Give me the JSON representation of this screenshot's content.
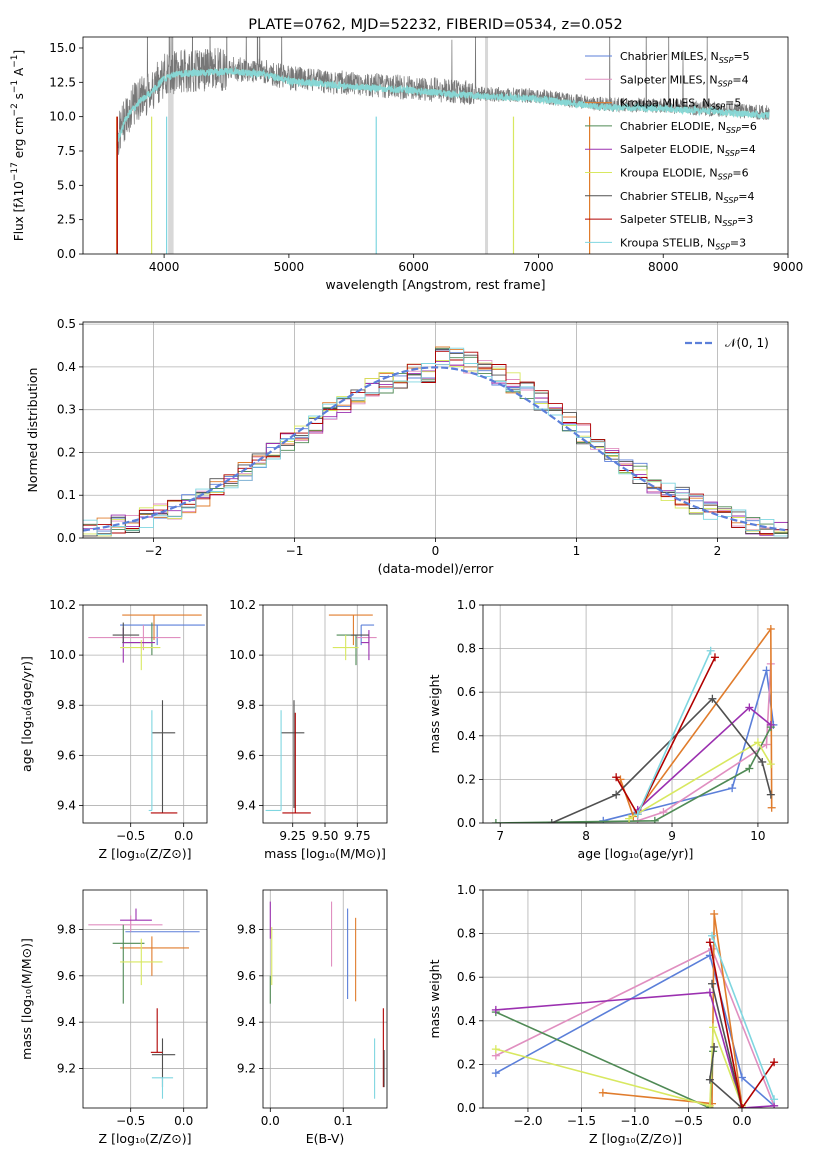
{
  "title": "PLATE=0762, MJD=52232, FIBERID=0534, z=0.052",
  "colors": {
    "Chabrier MILES": "#5b7fd9",
    "Salpeter MILES": "#e08fc0",
    "Kroupa MILES": "#e07c2c",
    "Chabrier ELODIE": "#4f8a55",
    "Salpeter ELODIE": "#9b30b0",
    "Kroupa ELODIE": "#d8e860",
    "Chabrier STELIB": "#505050",
    "Salpeter STELIB": "#b00000",
    "Kroupa STELIB": "#7fd6e0"
  },
  "chart_data": [
    {
      "id": "spectrum",
      "type": "line",
      "title": "PLATE=0762, MJD=52232, FIBERID=0534, z=0.052",
      "xlabel": "wavelength [Angstrom, rest frame]",
      "ylabel_html": "Flux [f<tspan font-style='italic'>λ</tspan>10<tspan dy='-6' font-size='9'>−17</tspan><tspan dy='6'> erg cm</tspan><tspan dy='-6' font-size='9'>−2</tspan><tspan dy='6'> s</tspan><tspan dy='-6' font-size='9'>−1</tspan><tspan dy='6'> A</tspan><tspan dy='-6' font-size='9'>−1</tspan><tspan dy='6'>]</tspan>",
      "xlim": [
        3350,
        9000
      ],
      "ylim": [
        0,
        15.8
      ],
      "xticks": [
        4000,
        5000,
        6000,
        7000,
        8000,
        9000
      ],
      "yticks": [
        0.0,
        2.5,
        5.0,
        7.5,
        10.0,
        12.5,
        15.0
      ],
      "legend": [
        {
          "name": "Chabrier MILES",
          "label": "Chabrier MILES, N",
          "nssp": "5"
        },
        {
          "name": "Salpeter MILES",
          "label": "Salpeter MILES, N",
          "nssp": "4"
        },
        {
          "name": "Kroupa MILES",
          "label": "Kroupa MILES, N",
          "nssp": "5"
        },
        {
          "name": "Chabrier ELODIE",
          "label": "Chabrier ELODIE, N",
          "nssp": "6"
        },
        {
          "name": "Salpeter ELODIE",
          "label": "Salpeter ELODIE, N",
          "nssp": "4"
        },
        {
          "name": "Kroupa ELODIE",
          "label": "Kroupa ELODIE, N",
          "nssp": "6"
        },
        {
          "name": "Chabrier STELIB",
          "label": "Chabrier STELIB, N",
          "nssp": "4"
        },
        {
          "name": "Salpeter STELIB",
          "label": "Salpeter STELIB, N",
          "nssp": "3"
        },
        {
          "name": "Kroupa STELIB",
          "label": "Kroupa STELIB, N",
          "nssp": "3"
        }
      ],
      "legend_sub": "SSP",
      "legend_placement": "upper-right",
      "continuum": [
        [
          3620,
          8.3
        ],
        [
          3700,
          10.2
        ],
        [
          3800,
          11.3
        ],
        [
          3900,
          12.0
        ],
        [
          4000,
          13.0
        ],
        [
          4100,
          13.3
        ],
        [
          4300,
          13.4
        ],
        [
          4500,
          13.5
        ],
        [
          4800,
          13.3
        ],
        [
          5000,
          12.8
        ],
        [
          5500,
          12.4
        ],
        [
          6000,
          12.1
        ],
        [
          6500,
          11.7
        ],
        [
          7000,
          11.5
        ],
        [
          7500,
          10.9
        ],
        [
          8000,
          10.8
        ],
        [
          8500,
          10.5
        ],
        [
          8800,
          10.3
        ]
      ],
      "data_color": "#777777",
      "bands": [
        4040,
        4060,
        6580
      ],
      "model_colors": [
        "#e07c2c",
        "#d8e860",
        "#7fd6e0"
      ]
    },
    {
      "id": "residuals",
      "type": "step-histogram",
      "xlabel": "(data-model)/error",
      "ylabel": "Normed distribution",
      "xlim": [
        -2.5,
        2.5
      ],
      "ylim": [
        0,
        0.505
      ],
      "xticks": [
        -2,
        -1,
        0,
        1,
        2
      ],
      "yticks": [
        0.0,
        0.1,
        0.2,
        0.3,
        0.4,
        0.5
      ],
      "bin_width": 0.1,
      "gaussian_label": "𝒩(0, 1)",
      "gaussian_color": "#5b7fd9",
      "legend_placement": "upper-right"
    },
    {
      "id": "age-vs-Z",
      "type": "errorbar",
      "xlabel": "Z [log₁₀(Z/Z⊙)]",
      "ylabel": "age  [log₁₀(age/yr)]",
      "xlim": [
        -0.95,
        0.22
      ],
      "ylim": [
        9.33,
        10.2
      ],
      "xticks": [
        -0.5,
        0.0
      ],
      "yticks": [
        9.4,
        9.6,
        9.8,
        10.0,
        10.2
      ],
      "points": [
        {
          "series": "Chabrier MILES",
          "x": -0.25,
          "xerr": [
            0.35,
            0.45
          ],
          "y": 10.12,
          "yerr": [
            0.08,
            0.0
          ]
        },
        {
          "series": "Salpeter MILES",
          "x": -0.38,
          "xerr": [
            0.52,
            0.35
          ],
          "y": 10.07,
          "yerr": [
            0.05,
            0.05
          ]
        },
        {
          "series": "Kroupa MILES",
          "x": -0.28,
          "xerr": [
            0.3,
            0.45
          ],
          "y": 10.16,
          "yerr": [
            0.1,
            0.0
          ]
        },
        {
          "series": "Chabrier ELODIE",
          "x": -0.3,
          "xerr": [
            0.28,
            0.0
          ],
          "y": 10.05,
          "yerr": [
            0.05,
            0.08
          ]
        },
        {
          "series": "Salpeter ELODIE",
          "x": -0.57,
          "xerr": [
            0.0,
            0.3
          ],
          "y": 10.05,
          "yerr": [
            0.08,
            0.06
          ]
        },
        {
          "series": "Kroupa ELODIE",
          "x": -0.4,
          "xerr": [
            0.2,
            0.18
          ],
          "y": 10.03,
          "yerr": [
            0.09,
            0.03
          ]
        },
        {
          "series": "Chabrier STELIB",
          "x": -0.57,
          "xerr": [
            0.1,
            0.15
          ],
          "y": 10.08,
          "yerr": [
            0.03,
            0.05
          ]
        },
        {
          "series": "Chabrier STELIB",
          "x": -0.2,
          "xerr": [
            0.1,
            0.12
          ],
          "y": 9.69,
          "yerr": [
            0.32,
            0.13
          ]
        },
        {
          "series": "Salpeter STELIB",
          "x": -0.26,
          "xerr": [
            0.05,
            0.2
          ],
          "y": 9.37,
          "yerr": [
            0.0,
            0.0
          ]
        },
        {
          "series": "Kroupa STELIB",
          "x": -0.3,
          "xerr": [
            0.03,
            0.0
          ],
          "y": 9.38,
          "yerr": [
            0.0,
            0.4
          ]
        }
      ]
    },
    {
      "id": "age-vs-mass",
      "type": "errorbar",
      "xlabel": "mass [log₁₀(M/M⊙)]",
      "ylabel": "",
      "xlim": [
        9.02,
        9.98
      ],
      "ylim": [
        9.33,
        10.2
      ],
      "xticks": [
        9.25,
        9.5,
        9.75
      ],
      "yticks": [
        9.4,
        9.6,
        9.8,
        10.0,
        10.2
      ],
      "points": [
        {
          "series": "Chabrier MILES",
          "x": 9.78,
          "xerr": [
            0.0,
            0.1
          ],
          "y": 10.12,
          "yerr": [
            0.08,
            0.0
          ]
        },
        {
          "series": "Salpeter MILES",
          "x": 9.84,
          "xerr": [
            0.1,
            0.06
          ],
          "y": 10.07,
          "yerr": [
            0.03,
            0.02
          ]
        },
        {
          "series": "Kroupa MILES",
          "x": 9.72,
          "xerr": [
            0.19,
            0.15
          ],
          "y": 10.16,
          "yerr": [
            0.12,
            0.0
          ]
        },
        {
          "series": "Chabrier ELODIE",
          "x": 9.74,
          "xerr": [
            0.15,
            0.0
          ],
          "y": 10.08,
          "yerr": [
            0.12,
            0.0
          ]
        },
        {
          "series": "Salpeter ELODIE",
          "x": 9.84,
          "xerr": [
            0.06,
            0.0
          ],
          "y": 10.05,
          "yerr": [
            0.07,
            0.05
          ]
        },
        {
          "series": "Kroupa ELODIE",
          "x": 9.66,
          "xerr": [
            0.1,
            0.1
          ],
          "y": 10.03,
          "yerr": [
            0.05,
            0.05
          ]
        },
        {
          "series": "Chabrier STELIB",
          "x": 9.26,
          "xerr": [
            0.1,
            0.08
          ],
          "y": 9.69,
          "yerr": [
            0.3,
            0.13
          ]
        },
        {
          "series": "Salpeter STELIB",
          "x": 9.27,
          "xerr": [
            0.1,
            0.12
          ],
          "y": 9.37,
          "yerr": [
            0.0,
            0.4
          ]
        },
        {
          "series": "Kroupa STELIB",
          "x": 9.16,
          "xerr": [
            0.12,
            0.0
          ],
          "y": 9.38,
          "yerr": [
            0.0,
            0.4
          ]
        },
        {
          "series": "Chabrier STELIB",
          "x": 9.78,
          "xerr": [
            0.08,
            0.06
          ],
          "y": 10.08,
          "yerr": [
            0.0,
            0.0
          ]
        }
      ]
    },
    {
      "id": "weight-vs-age",
      "type": "line",
      "xlabel": "age  [log₁₀(age/yr)]",
      "ylabel": "mass weight",
      "xlim": [
        6.8,
        10.35
      ],
      "ylim": [
        0,
        1.0
      ],
      "xticks": [
        7,
        8,
        9,
        10
      ],
      "yticks": [
        0.0,
        0.2,
        0.4,
        0.6,
        0.8,
        1.0
      ],
      "series": [
        {
          "name": "Chabrier MILES",
          "x": [
            8.2,
            8.6,
            9.7,
            10.1,
            10.18
          ],
          "y": [
            0.01,
            0.05,
            0.16,
            0.7,
            0.45
          ]
        },
        {
          "name": "Salpeter MILES",
          "x": [
            8.6,
            8.9,
            10.1,
            10.15
          ],
          "y": [
            0.01,
            0.05,
            0.36,
            0.73
          ]
        },
        {
          "name": "Kroupa MILES",
          "x": [
            8.4,
            8.55,
            10.15,
            10.16
          ],
          "y": [
            0.2,
            0.03,
            0.89,
            0.07
          ]
        },
        {
          "name": "Chabrier ELODIE",
          "x": [
            6.95,
            8.8,
            9.9,
            10.15
          ],
          "y": [
            0.0,
            0.01,
            0.25,
            0.44
          ]
        },
        {
          "name": "Salpeter ELODIE",
          "x": [
            8.6,
            9.9,
            10.15
          ],
          "y": [
            0.06,
            0.53,
            0.45
          ]
        },
        {
          "name": "Kroupa ELODIE",
          "x": [
            8.5,
            10.0,
            10.15
          ],
          "y": [
            0.02,
            0.37,
            0.27
          ]
        },
        {
          "name": "Chabrier STELIB",
          "x": [
            7.6,
            8.35,
            9.47,
            10.05,
            10.15
          ],
          "y": [
            0.0,
            0.13,
            0.57,
            0.28,
            0.13
          ]
        },
        {
          "name": "Salpeter STELIB",
          "x": [
            8.35,
            8.6,
            9.5
          ],
          "y": [
            0.21,
            0.04,
            0.76
          ]
        },
        {
          "name": "Kroupa STELIB",
          "x": [
            8.6,
            9.45
          ],
          "y": [
            0.04,
            0.79
          ]
        }
      ]
    },
    {
      "id": "mass-vs-Z",
      "type": "errorbar",
      "xlabel": "Z [log₁₀(Z/Z⊙)]",
      "ylabel": "mass [log₁₀(M/M⊙)]",
      "xlim": [
        -0.95,
        0.22
      ],
      "ylim": [
        9.03,
        9.97
      ],
      "xticks": [
        -0.5,
        0.0
      ],
      "yticks": [
        9.2,
        9.4,
        9.6,
        9.8
      ],
      "points": [
        {
          "series": "Chabrier MILES",
          "x": -0.25,
          "xerr": [
            0.3,
            0.4
          ],
          "y": 9.79,
          "yerr": [
            0.0,
            0.0
          ]
        },
        {
          "series": "Salpeter MILES",
          "x": -0.5,
          "xerr": [
            0.4,
            0.3
          ],
          "y": 9.82,
          "yerr": [
            0.03,
            0.04
          ]
        },
        {
          "series": "Kroupa MILES",
          "x": -0.3,
          "xerr": [
            0.3,
            0.35
          ],
          "y": 9.72,
          "yerr": [
            0.12,
            0.05
          ]
        },
        {
          "series": "Chabrier ELODIE",
          "x": -0.57,
          "xerr": [
            0.1,
            0.2
          ],
          "y": 9.74,
          "yerr": [
            0.26,
            0.08
          ]
        },
        {
          "series": "Salpeter ELODIE",
          "x": -0.45,
          "xerr": [
            0.15,
            0.15
          ],
          "y": 9.84,
          "yerr": [
            0.0,
            0.05
          ]
        },
        {
          "series": "Kroupa ELODIE",
          "x": -0.4,
          "xerr": [
            0.2,
            0.2
          ],
          "y": 9.66,
          "yerr": [
            0.1,
            0.1
          ]
        },
        {
          "series": "Chabrier STELIB",
          "x": -0.2,
          "xerr": [
            0.1,
            0.12
          ],
          "y": 9.26,
          "yerr": [
            0.14,
            0.07
          ]
        },
        {
          "series": "Salpeter STELIB",
          "x": -0.25,
          "xerr": [
            0.06,
            0.05
          ],
          "y": 9.27,
          "yerr": [
            0.0,
            0.19
          ]
        },
        {
          "series": "Kroupa STELIB",
          "x": -0.2,
          "xerr": [
            0.1,
            0.1
          ],
          "y": 9.16,
          "yerr": [
            0.09,
            0.0
          ]
        }
      ]
    },
    {
      "id": "mass-vs-EBV",
      "type": "errorbar",
      "xlabel": "E(B-V)",
      "ylabel": "",
      "xlim": [
        -0.01,
        0.16
      ],
      "ylim": [
        9.03,
        9.97
      ],
      "xticks": [
        0.0,
        0.1
      ],
      "yticks": [
        9.2,
        9.4,
        9.6,
        9.8
      ],
      "points": [
        {
          "series": "Salpeter ELODIE",
          "x": 0.0,
          "xerr": [
            0,
            0
          ],
          "y": 9.86,
          "yerr": [
            0.1,
            0.06
          ]
        },
        {
          "series": "Chabrier ELODIE",
          "x": 0.0,
          "xerr": [
            0,
            0
          ],
          "y": 9.6,
          "yerr": [
            0.12,
            0.0
          ]
        },
        {
          "series": "Kroupa ELODIE",
          "x": 0.002,
          "xerr": [
            0,
            0
          ],
          "y": 9.66,
          "yerr": [
            0.1,
            0.15
          ]
        },
        {
          "series": "Salpeter MILES",
          "x": 0.084,
          "xerr": [
            0,
            0
          ],
          "y": 9.78,
          "yerr": [
            0.14,
            0.14
          ]
        },
        {
          "series": "Chabrier MILES",
          "x": 0.106,
          "xerr": [
            0,
            0
          ],
          "y": 9.7,
          "yerr": [
            0.2,
            0.19
          ]
        },
        {
          "series": "Kroupa MILES",
          "x": 0.117,
          "xerr": [
            0,
            0
          ],
          "y": 9.67,
          "yerr": [
            0.18,
            0.18
          ]
        },
        {
          "series": "Kroupa STELIB",
          "x": 0.143,
          "xerr": [
            0,
            0
          ],
          "y": 9.2,
          "yerr": [
            0.13,
            0.13
          ]
        },
        {
          "series": "Salpeter STELIB",
          "x": 0.155,
          "xerr": [
            0,
            0
          ],
          "y": 9.29,
          "yerr": [
            0.17,
            0.17
          ]
        },
        {
          "series": "Chabrier STELIB",
          "x": 0.156,
          "xerr": [
            0,
            0
          ],
          "y": 9.2,
          "yerr": [
            0.08,
            0.08
          ]
        }
      ]
    },
    {
      "id": "weight-vs-Z",
      "type": "line",
      "xlabel": "Z [log₁₀(Z/Z⊙)]",
      "ylabel": "mass weight",
      "xlim": [
        -2.42,
        0.43
      ],
      "ylim": [
        0,
        1.0
      ],
      "xticks": [
        -2.0,
        -1.5,
        -1.0,
        -0.5,
        0.0
      ],
      "yticks": [
        0.0,
        0.2,
        0.4,
        0.6,
        0.8,
        1.0
      ],
      "series": [
        {
          "name": "Chabrier MILES",
          "x": [
            -2.3,
            -0.3,
            0.0,
            0.3
          ],
          "y": [
            0.16,
            0.7,
            0.14,
            0.01
          ]
        },
        {
          "name": "Salpeter MILES",
          "x": [
            -2.3,
            -0.28,
            0.3
          ],
          "y": [
            0.24,
            0.73,
            0.01
          ]
        },
        {
          "name": "Kroupa MILES",
          "x": [
            -1.3,
            -0.28,
            -0.26,
            0.0
          ],
          "y": [
            0.07,
            0.02,
            0.89,
            0.01
          ]
        },
        {
          "name": "Chabrier ELODIE",
          "x": [
            -2.3,
            -0.3,
            -0.27
          ],
          "y": [
            0.44,
            0.0,
            0.26
          ]
        },
        {
          "name": "Salpeter ELODIE",
          "x": [
            -2.3,
            -0.3,
            0.0,
            0.3
          ],
          "y": [
            0.45,
            0.53,
            0.0,
            0.01
          ]
        },
        {
          "name": "Kroupa ELODIE",
          "x": [
            -2.3,
            -0.3,
            -0.27,
            0.0
          ],
          "y": [
            0.27,
            0.01,
            0.37,
            0.01
          ]
        },
        {
          "name": "Chabrier STELIB",
          "x": [
            -0.28,
            0.0,
            -0.3,
            -0.26
          ],
          "y": [
            0.57,
            0.0,
            0.13,
            0.28
          ]
        },
        {
          "name": "Salpeter STELIB",
          "x": [
            -0.3,
            0.0,
            0.3
          ],
          "y": [
            0.76,
            0.0,
            0.21
          ]
        },
        {
          "name": "Kroupa STELIB",
          "x": [
            -0.28,
            0.3
          ],
          "y": [
            0.79,
            0.04
          ]
        }
      ]
    }
  ]
}
